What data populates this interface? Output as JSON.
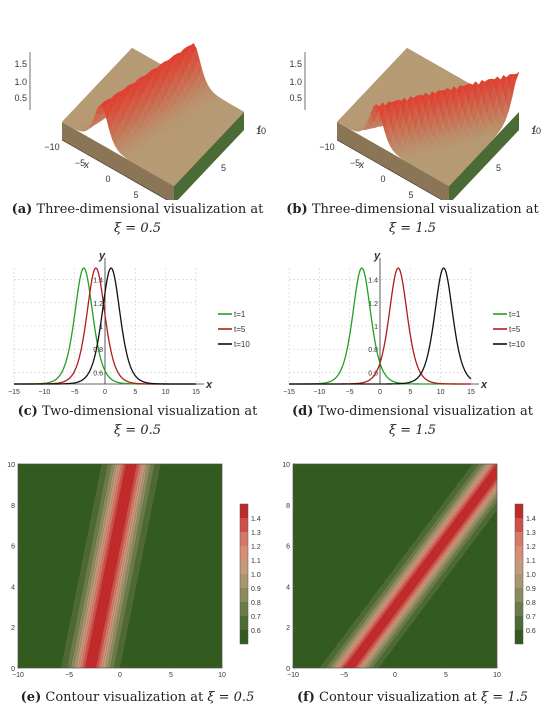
{
  "captions": {
    "a": {
      "tag": "(a)",
      "text": "Three-dimensional visualization at",
      "math": "ξ = 0.5"
    },
    "b": {
      "tag": "(b)",
      "text": "Three-dimensional visualization at",
      "math": "ξ = 1.5"
    },
    "c": {
      "tag": "(c)",
      "text": "Two-dimensional visualization at",
      "math": "ξ = 0.5"
    },
    "d": {
      "tag": "(d)",
      "text": "Two-dimensional visualization at",
      "math": "ξ = 1.5"
    },
    "e": {
      "tag": "(e)",
      "text": "Contour visualization at",
      "math": "ξ = 0.5"
    },
    "f": {
      "tag": "(f)",
      "text": "Contour visualization at",
      "math": "ξ = 1.5"
    }
  },
  "surface_axes": {
    "z_ticks": [
      "1.5",
      "1.0",
      "0.5"
    ],
    "x_ticks": [
      "−10",
      "−5",
      "0",
      "5",
      "10"
    ],
    "t_ticks": [
      "0",
      "5",
      "10"
    ],
    "x_label": "x",
    "t_label": "t"
  },
  "chart_data": [
    {
      "type": "surface",
      "panel": "a",
      "xi": 0.5,
      "x_range": [
        -10,
        10
      ],
      "t_range": [
        0,
        10
      ],
      "z_range": [
        0.5,
        1.5
      ],
      "colors": {
        "base": "#b59a73",
        "peak": "#e04030",
        "side": "#4a6b35"
      }
    },
    {
      "type": "surface",
      "panel": "b",
      "xi": 1.5,
      "x_range": [
        -10,
        10
      ],
      "t_range": [
        0,
        10
      ],
      "z_range": [
        0.5,
        1.5
      ],
      "colors": {
        "base": "#b59a73",
        "peak": "#e04030",
        "side": "#4a6b35"
      }
    },
    {
      "type": "line",
      "panel": "c",
      "xi": 0.5,
      "xlabel": "x",
      "ylabel": "y",
      "xlim": [
        -15,
        15
      ],
      "ylim": [
        0.5,
        1.5
      ],
      "xticks": [
        -15,
        -10,
        -5,
        0,
        5,
        10,
        15
      ],
      "yticks": [
        0.6,
        0.8,
        1.0,
        1.2,
        1.4
      ],
      "ytick_labels": [
        "0.6",
        "0.8",
        "1",
        "1.2",
        "1.4"
      ],
      "baseline": 0.5,
      "amplitude": 1.0,
      "width": 2.0,
      "series": [
        {
          "name": "t=1",
          "color": "#22a022",
          "peak_x": -3.5
        },
        {
          "name": "t=5",
          "color": "#b01c1c",
          "peak_x": -1.5
        },
        {
          "name": "t=10",
          "color": "#111111",
          "peak_x": 1.0
        }
      ]
    },
    {
      "type": "line",
      "panel": "d",
      "xi": 1.5,
      "xlabel": "x",
      "ylabel": "y",
      "xlim": [
        -15,
        15
      ],
      "ylim": [
        0.5,
        1.5
      ],
      "xticks": [
        -15,
        -10,
        -5,
        0,
        5,
        10,
        15
      ],
      "yticks": [
        0.6,
        0.8,
        1.0,
        1.2,
        1.4
      ],
      "ytick_labels": [
        "0.6",
        "0.8",
        "1",
        "1.2",
        "1.4"
      ],
      "baseline": 0.5,
      "amplitude": 1.0,
      "width": 2.0,
      "series": [
        {
          "name": "t=1",
          "color": "#22a022",
          "peak_x": -3.0
        },
        {
          "name": "t=5",
          "color": "#b01c1c",
          "peak_x": 3.0
        },
        {
          "name": "t=10",
          "color": "#111111",
          "peak_x": 10.5
        }
      ]
    },
    {
      "type": "heatmap",
      "panel": "e",
      "xi": 0.5,
      "xlim": [
        -10,
        10
      ],
      "ylim": [
        0,
        10
      ],
      "xticks": [
        -10,
        -5,
        0,
        5,
        10
      ],
      "yticks": [
        0,
        2,
        4,
        6,
        8,
        10
      ],
      "band_center_at_t0": -2.9,
      "band_slope": 0.4,
      "colorbar_ticks": [
        "1.4",
        "1.3",
        "1.2",
        "1.1",
        "1.0",
        "0.9",
        "0.8",
        "0.7",
        "0.6"
      ],
      "levels": [
        {
          "min": 0.5,
          "color": "#335a1f"
        },
        {
          "min": 0.6,
          "color": "#4d6a33"
        },
        {
          "min": 0.7,
          "color": "#6b7a4a"
        },
        {
          "min": 0.8,
          "color": "#8c8b5e"
        },
        {
          "min": 0.9,
          "color": "#a89670"
        },
        {
          "min": 1.0,
          "color": "#c49a7a"
        },
        {
          "min": 1.1,
          "color": "#d48f74"
        },
        {
          "min": 1.2,
          "color": "#d9766a"
        },
        {
          "min": 1.3,
          "color": "#d05048"
        },
        {
          "min": 1.4,
          "color": "#c12a2a"
        }
      ]
    },
    {
      "type": "heatmap",
      "panel": "f",
      "xi": 1.5,
      "xlim": [
        -10,
        10
      ],
      "ylim": [
        0,
        10
      ],
      "xticks": [
        -10,
        -5,
        0,
        5,
        10
      ],
      "yticks": [
        0,
        2,
        4,
        6,
        8,
        10
      ],
      "band_center_at_t0": -4.5,
      "band_slope": 1.5,
      "colorbar_ticks": [
        "1.4",
        "1.3",
        "1.2",
        "1.1",
        "1.0",
        "0.9",
        "0.8",
        "0.7",
        "0.6"
      ],
      "levels": [
        {
          "min": 0.5,
          "color": "#335a1f"
        },
        {
          "min": 0.6,
          "color": "#4d6a33"
        },
        {
          "min": 0.7,
          "color": "#6b7a4a"
        },
        {
          "min": 0.8,
          "color": "#8c8b5e"
        },
        {
          "min": 0.9,
          "color": "#a89670"
        },
        {
          "min": 1.0,
          "color": "#c49a7a"
        },
        {
          "min": 1.1,
          "color": "#d48f74"
        },
        {
          "min": 1.2,
          "color": "#d9766a"
        },
        {
          "min": 1.3,
          "color": "#d05048"
        },
        {
          "min": 1.4,
          "color": "#c12a2a"
        }
      ]
    }
  ]
}
